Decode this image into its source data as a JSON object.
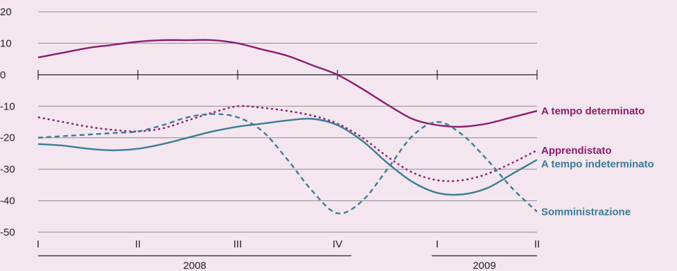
{
  "chart_data": {
    "type": "line",
    "title": "",
    "xlabel": "",
    "ylabel": "",
    "ylim": [
      -50,
      20
    ],
    "yticks": [
      20,
      10,
      0,
      -10,
      -20,
      -30,
      -40,
      -50
    ],
    "grid": true,
    "legend": "labels at line ends (right)",
    "x_ticks": [
      "I",
      "II",
      "III",
      "IV",
      "I",
      "II"
    ],
    "x_groups": [
      {
        "label": "2008",
        "from_tick": 0,
        "to_tick": 3
      },
      {
        "label": "2009",
        "from_tick": 4,
        "to_tick": 5
      }
    ],
    "series": [
      {
        "name": "A tempo determinato",
        "color": "#8a1b6e",
        "style": "solid",
        "points": [
          [
            0,
            5.5
          ],
          [
            0.25,
            7
          ],
          [
            0.5,
            8.5
          ],
          [
            0.75,
            9.5
          ],
          [
            1,
            10.5
          ],
          [
            1.25,
            11
          ],
          [
            1.5,
            11
          ],
          [
            1.75,
            11
          ],
          [
            2,
            10
          ],
          [
            2.25,
            8
          ],
          [
            2.5,
            6
          ],
          [
            2.75,
            3
          ],
          [
            3,
            0
          ],
          [
            3.25,
            -4.5
          ],
          [
            3.5,
            -9.5
          ],
          [
            3.75,
            -14
          ],
          [
            4,
            -16
          ],
          [
            4.25,
            -16.5
          ],
          [
            4.5,
            -15.5
          ],
          [
            4.75,
            -13.5
          ],
          [
            5,
            -11.5
          ]
        ]
      },
      {
        "name": "Apprendistato",
        "color": "#8a1b6e",
        "style": "dotted",
        "points": [
          [
            0,
            -13.5
          ],
          [
            0.25,
            -15
          ],
          [
            0.5,
            -16.5
          ],
          [
            0.75,
            -17.5
          ],
          [
            1,
            -18
          ],
          [
            1.25,
            -17
          ],
          [
            1.5,
            -14.5
          ],
          [
            1.75,
            -12
          ],
          [
            2,
            -10
          ],
          [
            2.25,
            -10.5
          ],
          [
            2.5,
            -11.5
          ],
          [
            2.75,
            -13
          ],
          [
            3,
            -15.5
          ],
          [
            3.25,
            -20
          ],
          [
            3.5,
            -26
          ],
          [
            3.75,
            -31
          ],
          [
            4,
            -33.5
          ],
          [
            4.25,
            -33.5
          ],
          [
            4.5,
            -31.5
          ],
          [
            4.75,
            -28
          ],
          [
            5,
            -24
          ]
        ]
      },
      {
        "name": "A tempo indeterminato",
        "color": "#3a7b94",
        "style": "solid",
        "points": [
          [
            0,
            -22
          ],
          [
            0.25,
            -22.5
          ],
          [
            0.5,
            -23.5
          ],
          [
            0.75,
            -24
          ],
          [
            1,
            -23.5
          ],
          [
            1.25,
            -22
          ],
          [
            1.5,
            -20
          ],
          [
            1.75,
            -18
          ],
          [
            2,
            -16.5
          ],
          [
            2.25,
            -15.5
          ],
          [
            2.5,
            -14.5
          ],
          [
            2.75,
            -14
          ],
          [
            3,
            -16
          ],
          [
            3.25,
            -21
          ],
          [
            3.5,
            -28
          ],
          [
            3.75,
            -34
          ],
          [
            4,
            -37.5
          ],
          [
            4.25,
            -38
          ],
          [
            4.5,
            -36
          ],
          [
            4.75,
            -31.5
          ],
          [
            5,
            -27
          ]
        ]
      },
      {
        "name": "Somministrazione",
        "color": "#3a7b94",
        "style": "dashed",
        "points": [
          [
            0,
            -20
          ],
          [
            0.25,
            -19.5
          ],
          [
            0.5,
            -19
          ],
          [
            0.75,
            -18.5
          ],
          [
            1,
            -18
          ],
          [
            1.25,
            -16
          ],
          [
            1.5,
            -13.5
          ],
          [
            1.75,
            -12.5
          ],
          [
            2,
            -13.5
          ],
          [
            2.25,
            -18
          ],
          [
            2.5,
            -27
          ],
          [
            2.75,
            -37
          ],
          [
            3,
            -44
          ],
          [
            3.25,
            -40
          ],
          [
            3.5,
            -30
          ],
          [
            3.75,
            -19.5
          ],
          [
            4,
            -15
          ],
          [
            4.25,
            -19
          ],
          [
            4.5,
            -27
          ],
          [
            4.75,
            -36
          ],
          [
            5,
            -43.5
          ]
        ]
      }
    ]
  }
}
